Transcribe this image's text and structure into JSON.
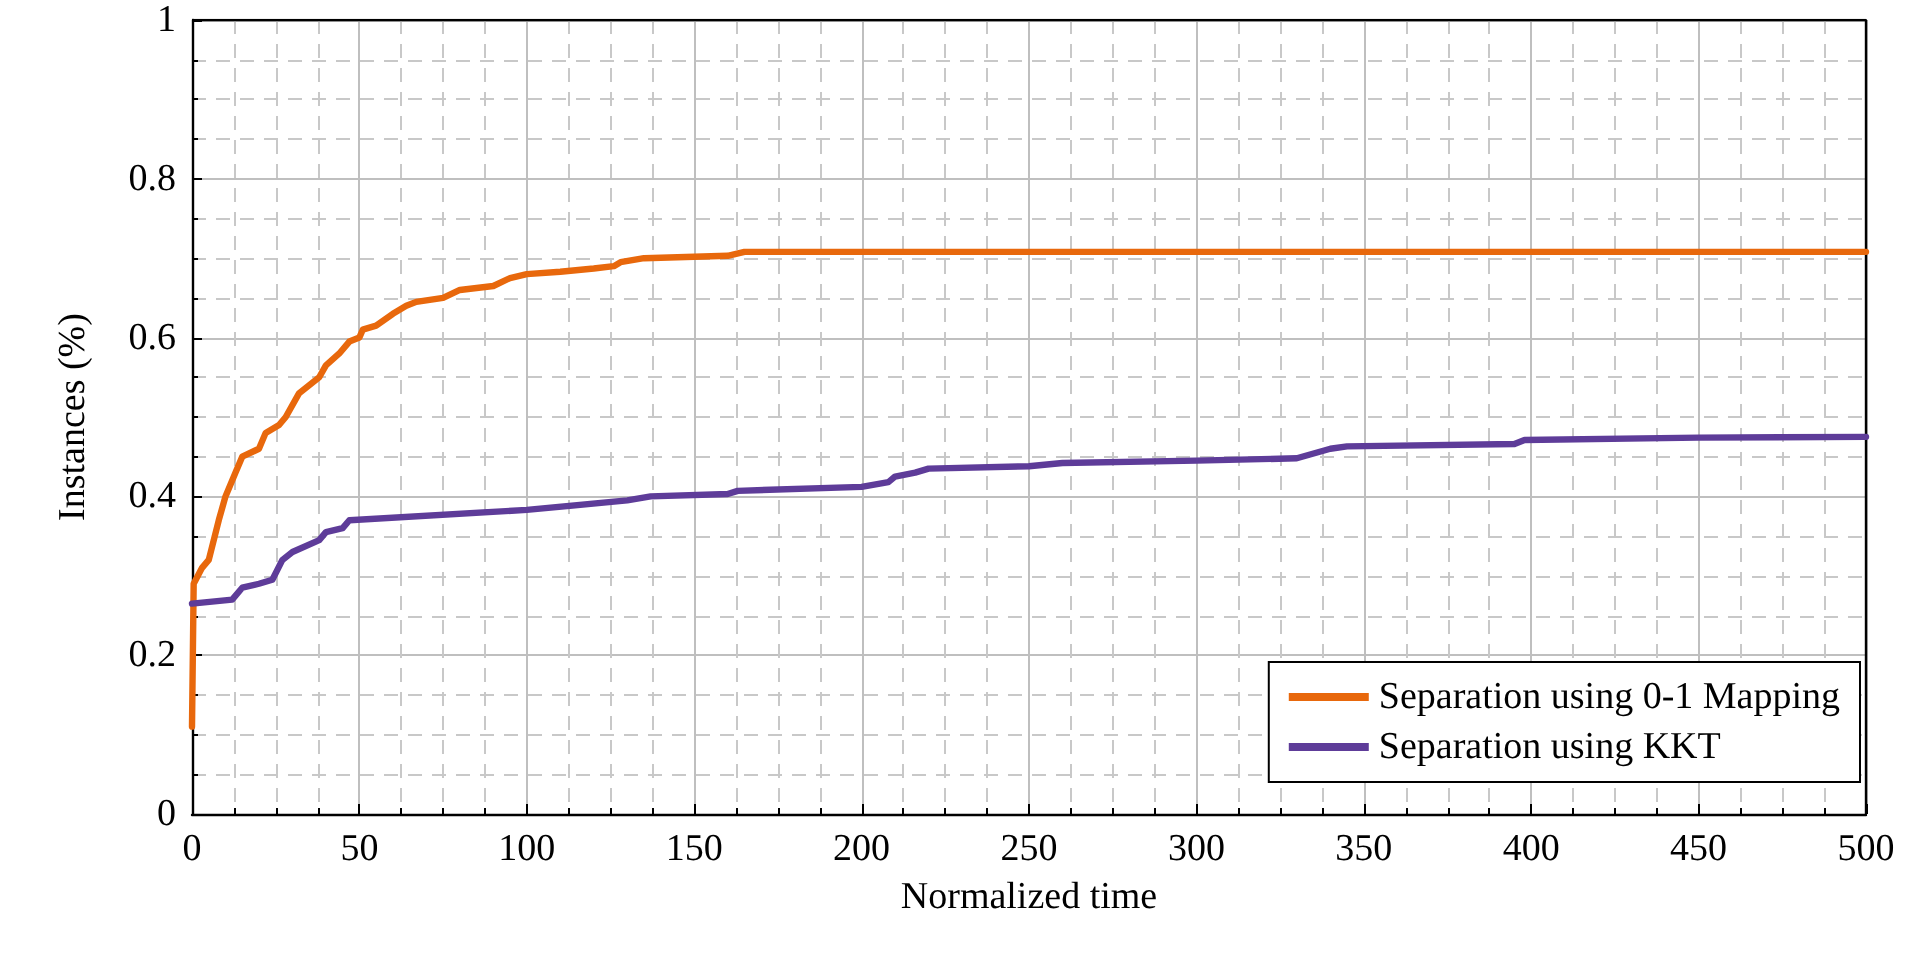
{
  "chart_data": {
    "type": "line",
    "xlabel": "Normalized time",
    "ylabel": "Instances (%)",
    "xlim": [
      0,
      500
    ],
    "xticks": [
      0,
      50,
      100,
      150,
      200,
      250,
      300,
      350,
      400,
      450,
      500
    ],
    "ylim": [
      0,
      1
    ],
    "yticks": [
      0,
      0.2,
      0.4,
      0.6,
      0.8,
      1
    ],
    "grid": true,
    "legend": "bottom right",
    "marker": "none",
    "line_style": "solid",
    "series": [
      {
        "name": "Separation using 0-1 Mapping",
        "color": "#e8680c",
        "x": [
          0,
          0.5,
          3,
          5,
          8,
          10,
          13,
          15,
          20,
          22,
          26,
          28,
          32,
          35,
          38,
          40,
          44,
          47,
          50,
          51,
          55,
          60,
          64,
          67,
          75,
          80,
          90,
          95,
          100,
          110,
          120,
          126,
          128,
          135,
          160,
          165,
          500
        ],
        "values": [
          0.11,
          0.29,
          0.31,
          0.32,
          0.37,
          0.4,
          0.43,
          0.45,
          0.46,
          0.48,
          0.49,
          0.5,
          0.53,
          0.54,
          0.55,
          0.565,
          0.58,
          0.595,
          0.6,
          0.61,
          0.615,
          0.63,
          0.64,
          0.645,
          0.65,
          0.66,
          0.665,
          0.675,
          0.68,
          0.683,
          0.687,
          0.69,
          0.695,
          0.7,
          0.703,
          0.708,
          0.708
        ]
      },
      {
        "name": "Separation using KKT",
        "color": "#5e3c99",
        "x": [
          0,
          12,
          15,
          20,
          24,
          27,
          30,
          38,
          40,
          45,
          47,
          100,
          130,
          137,
          160,
          163,
          200,
          208,
          210,
          216,
          220,
          250,
          260,
          300,
          330,
          340,
          345,
          395,
          398,
          450,
          500
        ],
        "values": [
          0.265,
          0.27,
          0.285,
          0.29,
          0.295,
          0.32,
          0.33,
          0.345,
          0.355,
          0.36,
          0.37,
          0.383,
          0.395,
          0.4,
          0.403,
          0.407,
          0.412,
          0.418,
          0.425,
          0.43,
          0.435,
          0.438,
          0.442,
          0.445,
          0.448,
          0.46,
          0.463,
          0.466,
          0.471,
          0.474,
          0.475
        ]
      }
    ]
  }
}
